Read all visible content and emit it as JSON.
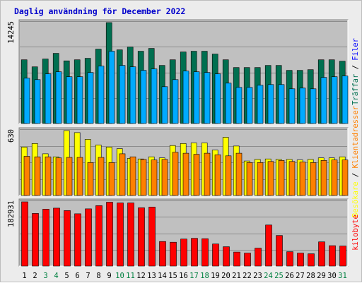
{
  "title": "Daglig användning för December 2022",
  "colors": {
    "background": "#ECECEC",
    "plot_bg": "#C0C0C0",
    "hits": "#006F50",
    "files": "#00AAFF",
    "sites": "#FF8000",
    "visits": "#FFFF00",
    "kbytes": "#FF0000",
    "weekend_day": "#008040",
    "weekday": "#000000"
  },
  "chart_data": [
    {
      "type": "bar",
      "panel": "top",
      "ymax_label": "14245",
      "ylim": [
        0,
        14245
      ],
      "right_label": [
        {
          "text": "Träffar",
          "color": "#006F50"
        },
        {
          "text": " / ",
          "color": "#000000"
        },
        {
          "text": "Filer",
          "color": "#0000FF"
        }
      ],
      "categories": [
        "1",
        "2",
        "3",
        "4",
        "5",
        "6",
        "7",
        "8",
        "9",
        "10",
        "11",
        "12",
        "13",
        "14",
        "15",
        "16",
        "17",
        "18",
        "19",
        "20",
        "21",
        "22",
        "23",
        "24",
        "25",
        "26",
        "27",
        "28",
        "29",
        "30",
        "31"
      ],
      "series": [
        {
          "key": "hits",
          "values": [
            9000,
            8000,
            9100,
            9900,
            8850,
            9000,
            9200,
            10500,
            14245,
            10400,
            10800,
            10200,
            10600,
            8200,
            9000,
            10100,
            10200,
            10200,
            9800,
            9000,
            7900,
            7900,
            7900,
            8200,
            8200,
            7500,
            7500,
            7600,
            9000,
            9000,
            8800
          ]
        },
        {
          "key": "files",
          "values": [
            6400,
            6200,
            7000,
            7300,
            6600,
            6600,
            7200,
            8100,
            10200,
            8200,
            8000,
            7500,
            7700,
            5200,
            6200,
            7400,
            7300,
            7200,
            7000,
            5700,
            5100,
            5100,
            5400,
            5500,
            5500,
            4900,
            5000,
            4900,
            6500,
            6600,
            6700
          ]
        }
      ]
    },
    {
      "type": "bar",
      "panel": "middle",
      "ymax_label": "630",
      "ylim": [
        0,
        630
      ],
      "right_label": [
        {
          "text": "Besökare",
          "color": "#FFFF00"
        },
        {
          "text": " / ",
          "color": "#000000"
        },
        {
          "text": "Klientadresser",
          "color": "#FF8000"
        }
      ],
      "series": [
        {
          "key": "visits",
          "values": [
            470,
            505,
            405,
            375,
            630,
            610,
            545,
            490,
            470,
            455,
            360,
            355,
            375,
            365,
            485,
            505,
            510,
            510,
            440,
            565,
            480,
            335,
            350,
            355,
            350,
            350,
            345,
            350,
            365,
            365,
            375
          ]
        },
        {
          "key": "sites",
          "values": [
            380,
            375,
            375,
            365,
            370,
            370,
            320,
            370,
            320,
            405,
            375,
            350,
            345,
            350,
            420,
            410,
            400,
            410,
            395,
            385,
            410,
            320,
            320,
            330,
            340,
            330,
            325,
            320,
            340,
            345,
            345
          ]
        }
      ]
    },
    {
      "type": "bar",
      "panel": "bottom",
      "ymax_label": "182931",
      "ylim": [
        0,
        182931
      ],
      "right_label": [
        {
          "text": "kilobyte",
          "color": "#FF0000"
        }
      ],
      "series": [
        {
          "key": "kbytes",
          "values": [
            182931,
            150000,
            162000,
            165000,
            158000,
            149000,
            163000,
            172000,
            182000,
            180000,
            180000,
            166000,
            168000,
            70000,
            68000,
            77000,
            79000,
            78000,
            63000,
            55000,
            40000,
            37000,
            51000,
            117000,
            87000,
            41000,
            37000,
            35000,
            69000,
            58000,
            57000
          ]
        }
      ]
    }
  ]
}
